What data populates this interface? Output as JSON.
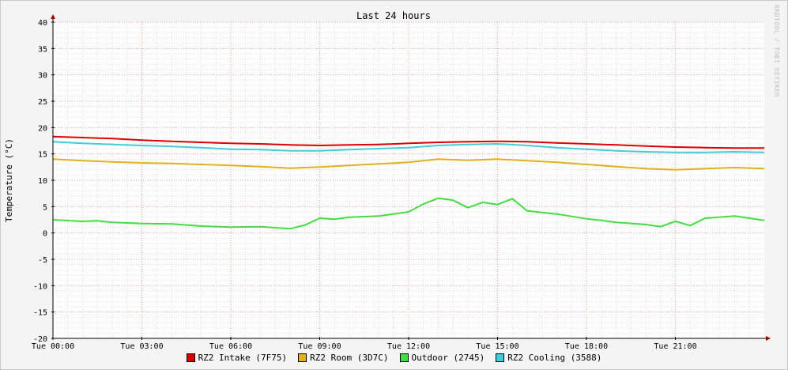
{
  "chart_data": {
    "type": "line",
    "title": "Last 24 hours",
    "ylabel": "Temperature (°C)",
    "xlabel": "",
    "ylim": [
      -20,
      40
    ],
    "yticks": [
      40,
      35,
      30,
      25,
      20,
      15,
      10,
      5,
      0,
      -5,
      -10,
      -15,
      -20
    ],
    "ytick_labels": [
      "40",
      "35",
      "30",
      "25",
      "20",
      "15",
      "10",
      "5",
      "0",
      "-5",
      "-10",
      "-15",
      "-20"
    ],
    "xlim": [
      0,
      24
    ],
    "xticks": [
      0,
      3,
      6,
      9,
      12,
      15,
      18,
      21
    ],
    "xtick_labels": [
      "Tue 00:00",
      "Tue 03:00",
      "Tue 06:00",
      "Tue 09:00",
      "Tue 12:00",
      "Tue 15:00",
      "Tue 18:00",
      "Tue 21:00"
    ],
    "grid": true,
    "legend_position": "bottom",
    "series": [
      {
        "name": "RZ2 Intake (7F75)",
        "color": "#dd0000",
        "x": [
          0,
          1,
          2,
          3,
          4,
          5,
          6,
          7,
          8,
          9,
          10,
          11,
          12,
          13,
          14,
          15,
          16,
          17,
          18,
          19,
          20,
          21,
          22,
          23,
          24
        ],
        "y": [
          18.3,
          18.1,
          17.9,
          17.6,
          17.4,
          17.2,
          17.0,
          16.9,
          16.7,
          16.6,
          16.7,
          16.8,
          17.0,
          17.2,
          17.3,
          17.4,
          17.3,
          17.1,
          16.9,
          16.7,
          16.5,
          16.3,
          16.2,
          16.1,
          16.1
        ]
      },
      {
        "name": "RZ2 Room (3D7C)",
        "color": "#e0b020",
        "x": [
          0,
          1,
          2,
          3,
          4,
          5,
          6,
          7,
          8,
          9,
          10,
          11,
          12,
          13,
          14,
          15,
          16,
          17,
          18,
          19,
          20,
          21,
          22,
          23,
          24
        ],
        "y": [
          14.0,
          13.7,
          13.5,
          13.3,
          13.2,
          13.0,
          12.8,
          12.6,
          12.3,
          12.5,
          12.8,
          13.1,
          13.4,
          14.0,
          13.8,
          14.0,
          13.7,
          13.4,
          13.0,
          12.6,
          12.2,
          12.0,
          12.2,
          12.4,
          12.2
        ]
      },
      {
        "name": "Outdoor (2745)",
        "color": "#44dd44",
        "x": [
          0,
          1,
          1.5,
          2,
          3,
          4,
          5,
          6,
          7,
          7.5,
          8,
          8.5,
          9,
          9.5,
          10,
          11,
          12,
          12.5,
          13,
          13.5,
          14,
          14.5,
          15,
          15.5,
          16,
          17,
          18,
          18.5,
          19,
          20,
          20.5,
          21,
          21.5,
          22,
          23,
          24
        ],
        "y": [
          2.5,
          2.2,
          2.3,
          2.0,
          1.8,
          1.7,
          1.3,
          1.1,
          1.2,
          1.0,
          0.8,
          1.5,
          2.8,
          2.6,
          3.0,
          3.2,
          4.0,
          5.5,
          6.6,
          6.2,
          4.8,
          5.8,
          5.4,
          6.5,
          4.2,
          3.6,
          2.7,
          2.4,
          2.0,
          1.6,
          1.2,
          2.2,
          1.4,
          2.8,
          3.2,
          2.4
        ]
      },
      {
        "name": "RZ2 Cooling (3588)",
        "color": "#44ccdd",
        "x": [
          0,
          1,
          2,
          3,
          4,
          5,
          6,
          7,
          8,
          9,
          10,
          11,
          12,
          13,
          14,
          15,
          16,
          17,
          18,
          19,
          20,
          21,
          22,
          23,
          24
        ],
        "y": [
          17.3,
          17.0,
          16.8,
          16.6,
          16.4,
          16.2,
          15.9,
          15.8,
          15.6,
          15.6,
          15.8,
          16.0,
          16.2,
          16.6,
          16.8,
          16.9,
          16.6,
          16.2,
          15.9,
          15.6,
          15.4,
          15.3,
          15.3,
          15.4,
          15.3
        ]
      }
    ]
  },
  "watermark": "RRDTOOL / TOBI OETIKER"
}
